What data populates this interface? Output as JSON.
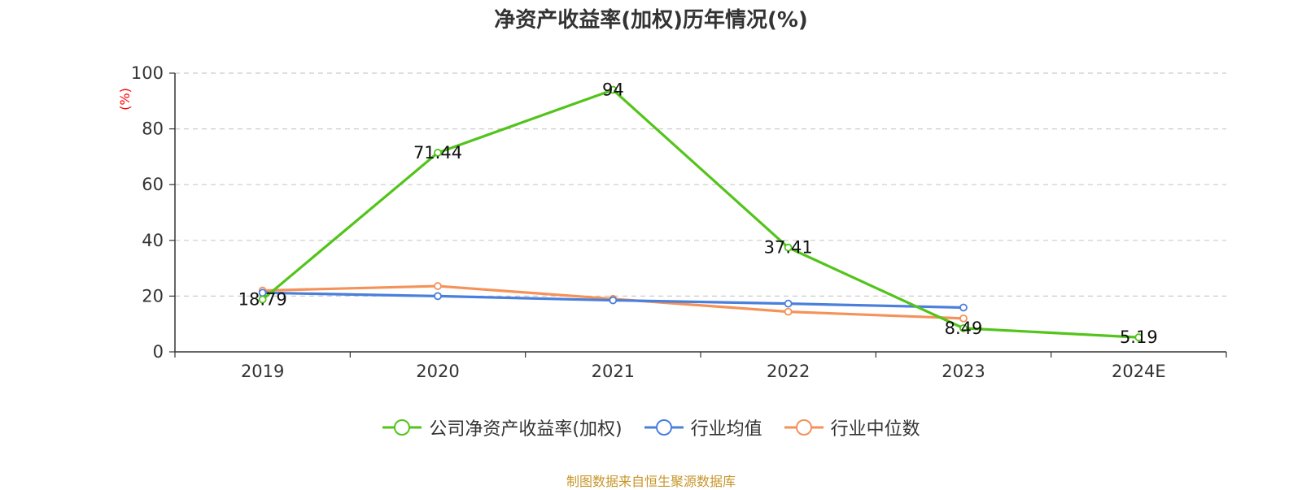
{
  "colors": {
    "company": "#52c41a",
    "industry_avg": "#4a7fdc",
    "industry_median": "#f4925a",
    "ylabel": "#ff0000",
    "source": "#c8962a"
  },
  "source_text": "制图数据来自恒生聚源数据库",
  "chart_data": {
    "type": "line",
    "title": "净资产收益率(加权)历年情况(%)",
    "xlabel": "",
    "ylabel": "(%)",
    "categories": [
      "2019",
      "2020",
      "2021",
      "2022",
      "2023",
      "2024E"
    ],
    "ylim": [
      0,
      100
    ],
    "yticks": [
      0,
      20,
      40,
      60,
      80,
      100
    ],
    "grid": true,
    "legend_position": "bottom",
    "series": [
      {
        "name": "公司净资产收益率(加权)",
        "color_key": "company",
        "values": [
          18.79,
          71.44,
          94,
          37.41,
          8.49,
          5.19
        ],
        "labels": [
          "18.79",
          "71.44",
          "94",
          "37.41",
          "8.49",
          "5.19"
        ]
      },
      {
        "name": "行业均值",
        "color_key": "industry_avg",
        "values": [
          21.2,
          20.0,
          18.5,
          17.3,
          15.9,
          null
        ]
      },
      {
        "name": "行业中位数",
        "color_key": "industry_median",
        "values": [
          22.0,
          23.6,
          19.0,
          14.4,
          12.0,
          null
        ]
      }
    ]
  }
}
